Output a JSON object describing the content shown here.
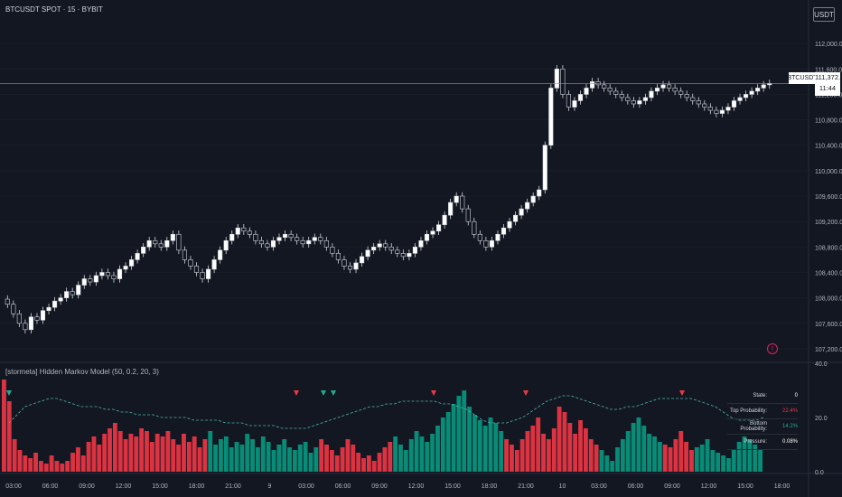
{
  "symbol_title": "BTCUSDT SPOT · 15 · BYBIT",
  "currency": "USDT",
  "indicator_title": "[stormeta] Hidden Markov Model (50, 0.2, 20, 3)",
  "last_price": {
    "ticker": "BTCUSDT",
    "value": "111,372.5",
    "countdown": "11:44"
  },
  "stats": [
    {
      "label": "State:",
      "value": "0",
      "color": "#ffffff"
    },
    {
      "label": "Top Probability:",
      "value": "22.4%",
      "color": "#f23645"
    },
    {
      "label": "Bottom Probability:",
      "value": "14.2%",
      "color": "#22ab94"
    },
    {
      "label": "Pressure:",
      "value": "0.08%",
      "color": "#ffffff"
    }
  ],
  "colors": {
    "background": "#131722",
    "grid": "#1e222d",
    "bull": "#089981",
    "bear": "#f23645",
    "candle": "#d1d4dc",
    "dash": "#4db6ac"
  },
  "chart_data": [
    {
      "type": "candlestick",
      "title": "BTCUSDT SPOT · 15 · BYBIT",
      "ylim": [
        107000,
        112400
      ],
      "yticks": [
        "112,000.0",
        "111,600.0",
        "111,200.0",
        "110,800.0",
        "110,400.0",
        "110,000.0",
        "109,600.0",
        "109,200.0",
        "108,800.0",
        "108,400.0",
        "108,000.0",
        "107,600.0",
        "107,200.0"
      ],
      "ytick_values": [
        112000,
        111600,
        111200,
        110800,
        110400,
        110000,
        109600,
        109200,
        108800,
        108400,
        108000,
        107600,
        107200
      ],
      "xticks": [
        "03:00",
        "06:00",
        "09:00",
        "12:00",
        "15:00",
        "18:00",
        "21:00",
        "9",
        "03:00",
        "06:00",
        "09:00",
        "12:00",
        "15:00",
        "18:00",
        "21:00",
        "10",
        "03:00",
        "06:00",
        "09:00",
        "12:00",
        "15:00",
        "18:00"
      ],
      "closes": [
        107900,
        107750,
        107600,
        107500,
        107700,
        107650,
        107800,
        107850,
        107950,
        108000,
        108100,
        108050,
        108200,
        108300,
        108250,
        108350,
        108400,
        108350,
        108300,
        108450,
        108500,
        108600,
        108700,
        108800,
        108900,
        108850,
        108800,
        108900,
        109000,
        108750,
        108600,
        108500,
        108400,
        108300,
        108450,
        108600,
        108750,
        108900,
        109000,
        109100,
        109050,
        109000,
        108900,
        108850,
        108800,
        108900,
        108950,
        109000,
        108950,
        108900,
        108850,
        108900,
        108950,
        108900,
        108800,
        108700,
        108600,
        108500,
        108450,
        108550,
        108650,
        108750,
        108800,
        108850,
        108800,
        108750,
        108700,
        108650,
        108700,
        108800,
        108900,
        109000,
        109050,
        109150,
        109300,
        109500,
        109600,
        109400,
        109200,
        109000,
        108900,
        108800,
        108900,
        109000,
        109100,
        109200,
        109300,
        109400,
        109500,
        109600,
        109700,
        110400,
        111300,
        111600,
        111200,
        111000,
        111100,
        111200,
        111300,
        111400,
        111350,
        111300,
        111250,
        111200,
        111150,
        111100,
        111050,
        111100,
        111150,
        111250,
        111300,
        111350,
        111300,
        111250,
        111200,
        111150,
        111100,
        111050,
        111000,
        110950,
        110900,
        110950,
        111000,
        111100,
        111150,
        111200,
        111250,
        111300,
        111350,
        111372.5
      ]
    },
    {
      "type": "bar",
      "title": "[stormeta] Hidden Markov Model (50, 0.2, 20, 3)",
      "ylim": [
        0,
        40
      ],
      "yticks": [
        "40.0",
        "20.0",
        "0.0"
      ],
      "ytick_values": [
        40,
        20,
        0
      ],
      "values": [
        34,
        26,
        12,
        8,
        6,
        5,
        7,
        4,
        3,
        6,
        4,
        3,
        4,
        7,
        9,
        6,
        11,
        13,
        10,
        14,
        16,
        18,
        15,
        12,
        14,
        13,
        16,
        15,
        11,
        14,
        13,
        15,
        12,
        10,
        14,
        11,
        13,
        9,
        12,
        15,
        10,
        12,
        13,
        9,
        11,
        10,
        14,
        12,
        9,
        13,
        11,
        8,
        10,
        12,
        9,
        8,
        10,
        11,
        7,
        9,
        12,
        10,
        8,
        6,
        9,
        12,
        10,
        7,
        5,
        6,
        4,
        7,
        9,
        11,
        13,
        10,
        8,
        12,
        15,
        13,
        11,
        14,
        17,
        20,
        22,
        25,
        28,
        30,
        24,
        21,
        19,
        17,
        20,
        18,
        15,
        12,
        10,
        8,
        12,
        15,
        17,
        20,
        14,
        12,
        16,
        24,
        22,
        18,
        14,
        19,
        16,
        12,
        10,
        8,
        6,
        4,
        9,
        12,
        15,
        18,
        20,
        17,
        14,
        13,
        11,
        10,
        9,
        12,
        15,
        11,
        8,
        9,
        10,
        12,
        8,
        7,
        6,
        5,
        8,
        11,
        13,
        12,
        10,
        8
      ],
      "series_line": [
        18,
        21,
        24,
        25,
        26,
        27,
        27,
        26,
        25,
        24,
        24,
        24,
        23,
        23,
        22,
        22,
        21,
        21,
        21,
        20,
        20,
        20,
        20,
        19,
        19,
        19,
        19,
        18,
        18,
        18,
        17,
        17,
        17,
        17,
        16,
        16,
        16,
        16,
        17,
        18,
        19,
        20,
        21,
        22,
        23,
        24,
        24,
        25,
        25,
        26,
        26,
        26,
        26,
        26,
        25,
        25,
        24,
        23,
        21,
        19,
        18,
        18,
        18,
        19,
        20,
        22,
        24,
        26,
        27,
        28,
        28,
        27,
        26,
        25,
        24,
        23,
        23,
        24,
        24,
        25,
        26,
        27,
        27,
        27,
        27,
        27,
        26,
        25,
        24,
        22,
        20,
        19,
        19,
        19,
        20
      ]
    }
  ]
}
